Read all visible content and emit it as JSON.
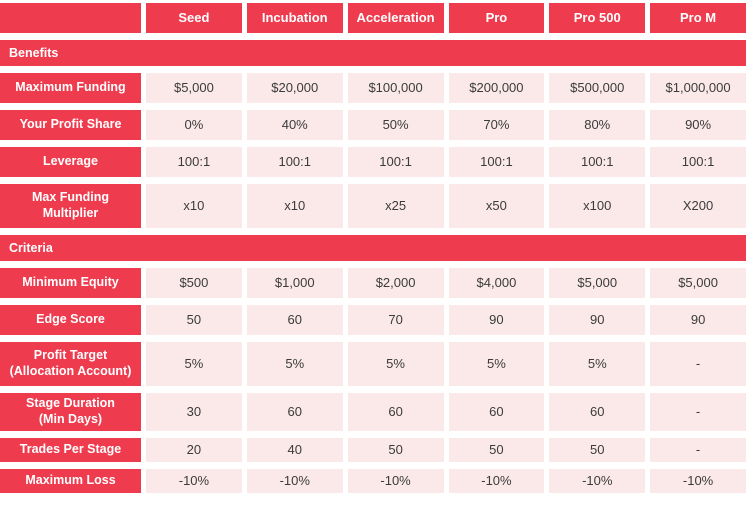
{
  "colors": {
    "brand_red": "#EF3B4E",
    "cell_pink": "#FBE9E9",
    "value_text": "#3B3B3B",
    "header_text": "#FFFFFF",
    "background": "#FFFFFF"
  },
  "table": {
    "columns": [
      "Seed",
      "Incubation",
      "Acceleration",
      "Pro",
      "Pro 500",
      "Pro M"
    ],
    "sections": [
      {
        "title": "Benefits",
        "rows": [
          {
            "label": "Maximum Funding",
            "values": [
              "$5,000",
              "$20,000",
              "$100,000",
              "$200,000",
              "$500,000",
              "$1,000,000"
            ]
          },
          {
            "label": "Your Profit Share",
            "values": [
              "0%",
              "40%",
              "50%",
              "70%",
              "80%",
              "90%"
            ]
          },
          {
            "label": "Leverage",
            "values": [
              "100:1",
              "100:1",
              "100:1",
              "100:1",
              "100:1",
              "100:1"
            ]
          },
          {
            "label": "Max Funding\nMultiplier",
            "values": [
              "x10",
              "x10",
              "x25",
              "x50",
              "x100",
              "X200"
            ]
          }
        ]
      },
      {
        "title": "Criteria",
        "rows": [
          {
            "label": "Minimum Equity",
            "values": [
              "$500",
              "$1,000",
              "$2,000",
              "$4,000",
              "$5,000",
              "$5,000"
            ]
          },
          {
            "label": "Edge Score",
            "values": [
              "50",
              "60",
              "70",
              "90",
              "90",
              "90"
            ]
          },
          {
            "label": "Profit Target\n(Allocation Account)",
            "values": [
              "5%",
              "5%",
              "5%",
              "5%",
              "5%",
              "-"
            ]
          },
          {
            "label": "Stage Duration\n(Min Days)",
            "values": [
              "30",
              "60",
              "60",
              "60",
              "60",
              "-"
            ]
          },
          {
            "label": "Trades Per Stage",
            "values": [
              "20",
              "40",
              "50",
              "50",
              "50",
              "-"
            ]
          },
          {
            "label": "Maximum Loss",
            "values": [
              "-10%",
              "-10%",
              "-10%",
              "-10%",
              "-10%",
              "-10%"
            ]
          }
        ]
      }
    ]
  }
}
